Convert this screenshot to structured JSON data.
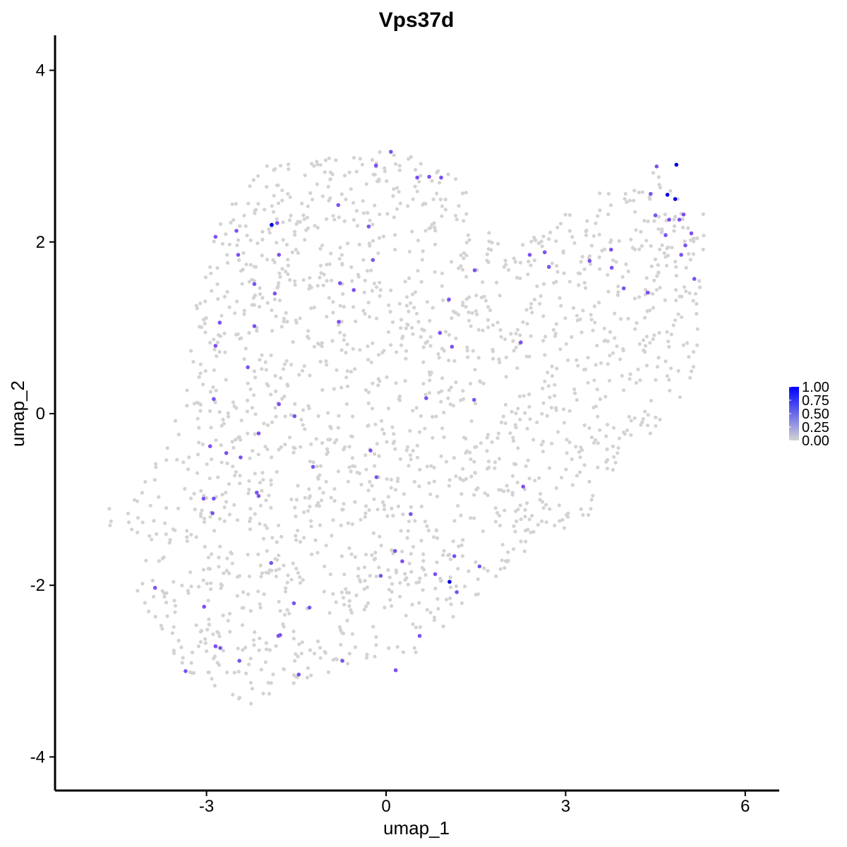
{
  "chart_data": {
    "type": "scatter",
    "title": "Vps37d",
    "xlabel": "umap_1",
    "ylabel": "umap_2",
    "xlim": [
      -5.4,
      6.6
    ],
    "ylim": [
      -4.35,
      4.4
    ],
    "xticks": [
      -3,
      0,
      3,
      6
    ],
    "yticks": [
      -4,
      -2,
      0,
      2,
      4
    ],
    "xtick_labels": [
      "-3",
      "0",
      "3",
      "6"
    ],
    "ytick_labels": [
      "-4",
      "-2",
      "0",
      "2",
      "4"
    ],
    "grid": false,
    "legend": {
      "placement": "right",
      "type": "colorbar",
      "breaks": [
        1.0,
        0.75,
        0.5,
        0.25,
        0.0
      ],
      "labels": [
        "1.00",
        "0.75",
        "0.50",
        "0.25",
        "0.00"
      ],
      "low_color": "#d3d3d3",
      "high_color": "#0000ff",
      "range": [
        0,
        1
      ]
    },
    "colors": {
      "low": "#d3d3d3",
      "high": "#0000ff"
    },
    "expressing_points": [
      {
        "x": 4.85,
        "y": 2.9,
        "value": 1.0
      },
      {
        "x": 4.7,
        "y": 2.55,
        "value": 1.0
      },
      {
        "x": 4.83,
        "y": 2.5,
        "value": 1.0
      },
      {
        "x": 1.06,
        "y": -1.96,
        "value": 1.0
      },
      {
        "x": -1.91,
        "y": 2.2,
        "value": 0.95
      },
      {
        "x": 4.52,
        "y": 2.88,
        "value": 0.6
      },
      {
        "x": 4.97,
        "y": 2.32,
        "value": 0.6
      },
      {
        "x": 4.73,
        "y": 2.26,
        "value": 0.6
      },
      {
        "x": 4.9,
        "y": 2.26,
        "value": 0.6
      },
      {
        "x": 4.42,
        "y": 2.56,
        "value": 0.6
      },
      {
        "x": 4.5,
        "y": 2.31,
        "value": 0.6
      },
      {
        "x": 5.1,
        "y": 2.1,
        "value": 0.6
      },
      {
        "x": 4.67,
        "y": 2.08,
        "value": 0.6
      },
      {
        "x": 5.0,
        "y": 1.96,
        "value": 0.6
      },
      {
        "x": 4.93,
        "y": 1.85,
        "value": 0.6
      },
      {
        "x": 5.15,
        "y": 1.57,
        "value": 0.6
      },
      {
        "x": 4.37,
        "y": 1.41,
        "value": 0.6
      },
      {
        "x": 3.97,
        "y": 1.46,
        "value": 0.6
      },
      {
        "x": 3.76,
        "y": 1.91,
        "value": 0.6
      },
      {
        "x": 3.77,
        "y": 1.7,
        "value": 0.6
      },
      {
        "x": 3.4,
        "y": 1.78,
        "value": 0.6
      },
      {
        "x": 2.65,
        "y": 1.88,
        "value": 0.6
      },
      {
        "x": 2.72,
        "y": 1.71,
        "value": 0.6
      },
      {
        "x": 2.4,
        "y": 1.85,
        "value": 0.6
      },
      {
        "x": 2.25,
        "y": 0.83,
        "value": 0.6
      },
      {
        "x": 1.48,
        "y": 1.67,
        "value": 0.6
      },
      {
        "x": 1.05,
        "y": 1.33,
        "value": 0.6
      },
      {
        "x": 0.9,
        "y": 0.94,
        "value": 0.6
      },
      {
        "x": 1.1,
        "y": 0.78,
        "value": 0.6
      },
      {
        "x": 0.67,
        "y": 0.18,
        "value": 0.6
      },
      {
        "x": 1.47,
        "y": 0.16,
        "value": 0.6
      },
      {
        "x": 0.52,
        "y": 2.75,
        "value": 0.6
      },
      {
        "x": 0.92,
        "y": 2.75,
        "value": 0.6
      },
      {
        "x": 0.72,
        "y": 2.76,
        "value": 0.6
      },
      {
        "x": 0.08,
        "y": 3.05,
        "value": 0.6
      },
      {
        "x": -0.17,
        "y": 2.89,
        "value": 0.6
      },
      {
        "x": -0.22,
        "y": 1.79,
        "value": 0.6
      },
      {
        "x": -0.29,
        "y": 2.18,
        "value": 0.6
      },
      {
        "x": -0.8,
        "y": 2.43,
        "value": 0.6
      },
      {
        "x": -0.77,
        "y": 1.52,
        "value": 0.6
      },
      {
        "x": -0.54,
        "y": 1.44,
        "value": 0.6
      },
      {
        "x": -0.79,
        "y": 1.07,
        "value": 0.6
      },
      {
        "x": -1.79,
        "y": 1.85,
        "value": 0.6
      },
      {
        "x": -1.82,
        "y": 2.22,
        "value": 0.6
      },
      {
        "x": -2.5,
        "y": 2.13,
        "value": 0.6
      },
      {
        "x": -2.85,
        "y": 2.06,
        "value": 0.6
      },
      {
        "x": -2.47,
        "y": 1.85,
        "value": 0.6
      },
      {
        "x": -2.2,
        "y": 1.51,
        "value": 0.6
      },
      {
        "x": -1.86,
        "y": 1.4,
        "value": 0.6
      },
      {
        "x": -2.2,
        "y": 1.02,
        "value": 0.6
      },
      {
        "x": -2.78,
        "y": 1.06,
        "value": 0.6
      },
      {
        "x": -2.85,
        "y": 0.79,
        "value": 0.6
      },
      {
        "x": -2.31,
        "y": 0.54,
        "value": 0.6
      },
      {
        "x": -2.88,
        "y": 0.17,
        "value": 0.6
      },
      {
        "x": -1.79,
        "y": 0.11,
        "value": 0.6
      },
      {
        "x": -1.53,
        "y": -0.03,
        "value": 0.6
      },
      {
        "x": -2.94,
        "y": -0.38,
        "value": 0.6
      },
      {
        "x": -2.67,
        "y": -0.46,
        "value": 0.6
      },
      {
        "x": -2.43,
        "y": -0.51,
        "value": 0.6
      },
      {
        "x": -2.13,
        "y": -0.23,
        "value": 0.6
      },
      {
        "x": -1.22,
        "y": -0.62,
        "value": 0.6
      },
      {
        "x": -0.26,
        "y": -0.43,
        "value": 0.6
      },
      {
        "x": -0.16,
        "y": -0.74,
        "value": 0.6
      },
      {
        "x": -3.05,
        "y": -0.99,
        "value": 0.6
      },
      {
        "x": -2.88,
        "y": -0.99,
        "value": 0.6
      },
      {
        "x": -2.9,
        "y": -1.16,
        "value": 0.6
      },
      {
        "x": -2.16,
        "y": -0.92,
        "value": 0.6
      },
      {
        "x": -2.13,
        "y": -0.96,
        "value": 0.6
      },
      {
        "x": 0.41,
        "y": -1.17,
        "value": 0.6
      },
      {
        "x": 2.29,
        "y": -0.85,
        "value": 0.6
      },
      {
        "x": 0.15,
        "y": -1.6,
        "value": 0.6
      },
      {
        "x": 0.27,
        "y": -1.72,
        "value": 0.6
      },
      {
        "x": -0.09,
        "y": -1.89,
        "value": 0.6
      },
      {
        "x": 0.82,
        "y": -1.87,
        "value": 0.6
      },
      {
        "x": 1.14,
        "y": -1.66,
        "value": 0.6
      },
      {
        "x": 1.56,
        "y": -1.78,
        "value": 0.6
      },
      {
        "x": 1.18,
        "y": -2.08,
        "value": 0.6
      },
      {
        "x": -1.92,
        "y": -1.74,
        "value": 0.6
      },
      {
        "x": -1.54,
        "y": -2.21,
        "value": 0.6
      },
      {
        "x": -1.28,
        "y": -2.26,
        "value": 0.6
      },
      {
        "x": -3.04,
        "y": -2.25,
        "value": 0.6
      },
      {
        "x": -3.86,
        "y": -2.03,
        "value": 0.6
      },
      {
        "x": -1.77,
        "y": -2.58,
        "value": 0.6
      },
      {
        "x": -1.8,
        "y": -2.59,
        "value": 0.6
      },
      {
        "x": -2.85,
        "y": -2.71,
        "value": 0.6
      },
      {
        "x": -2.77,
        "y": -2.73,
        "value": 0.6
      },
      {
        "x": -2.45,
        "y": -2.88,
        "value": 0.6
      },
      {
        "x": -3.35,
        "y": -3.0,
        "value": 0.6
      },
      {
        "x": -1.46,
        "y": -3.04,
        "value": 0.6
      },
      {
        "x": -0.73,
        "y": -2.88,
        "value": 0.6
      },
      {
        "x": 0.16,
        "y": -2.99,
        "value": 0.6
      },
      {
        "x": 0.56,
        "y": -2.59,
        "value": 0.6
      }
    ]
  }
}
